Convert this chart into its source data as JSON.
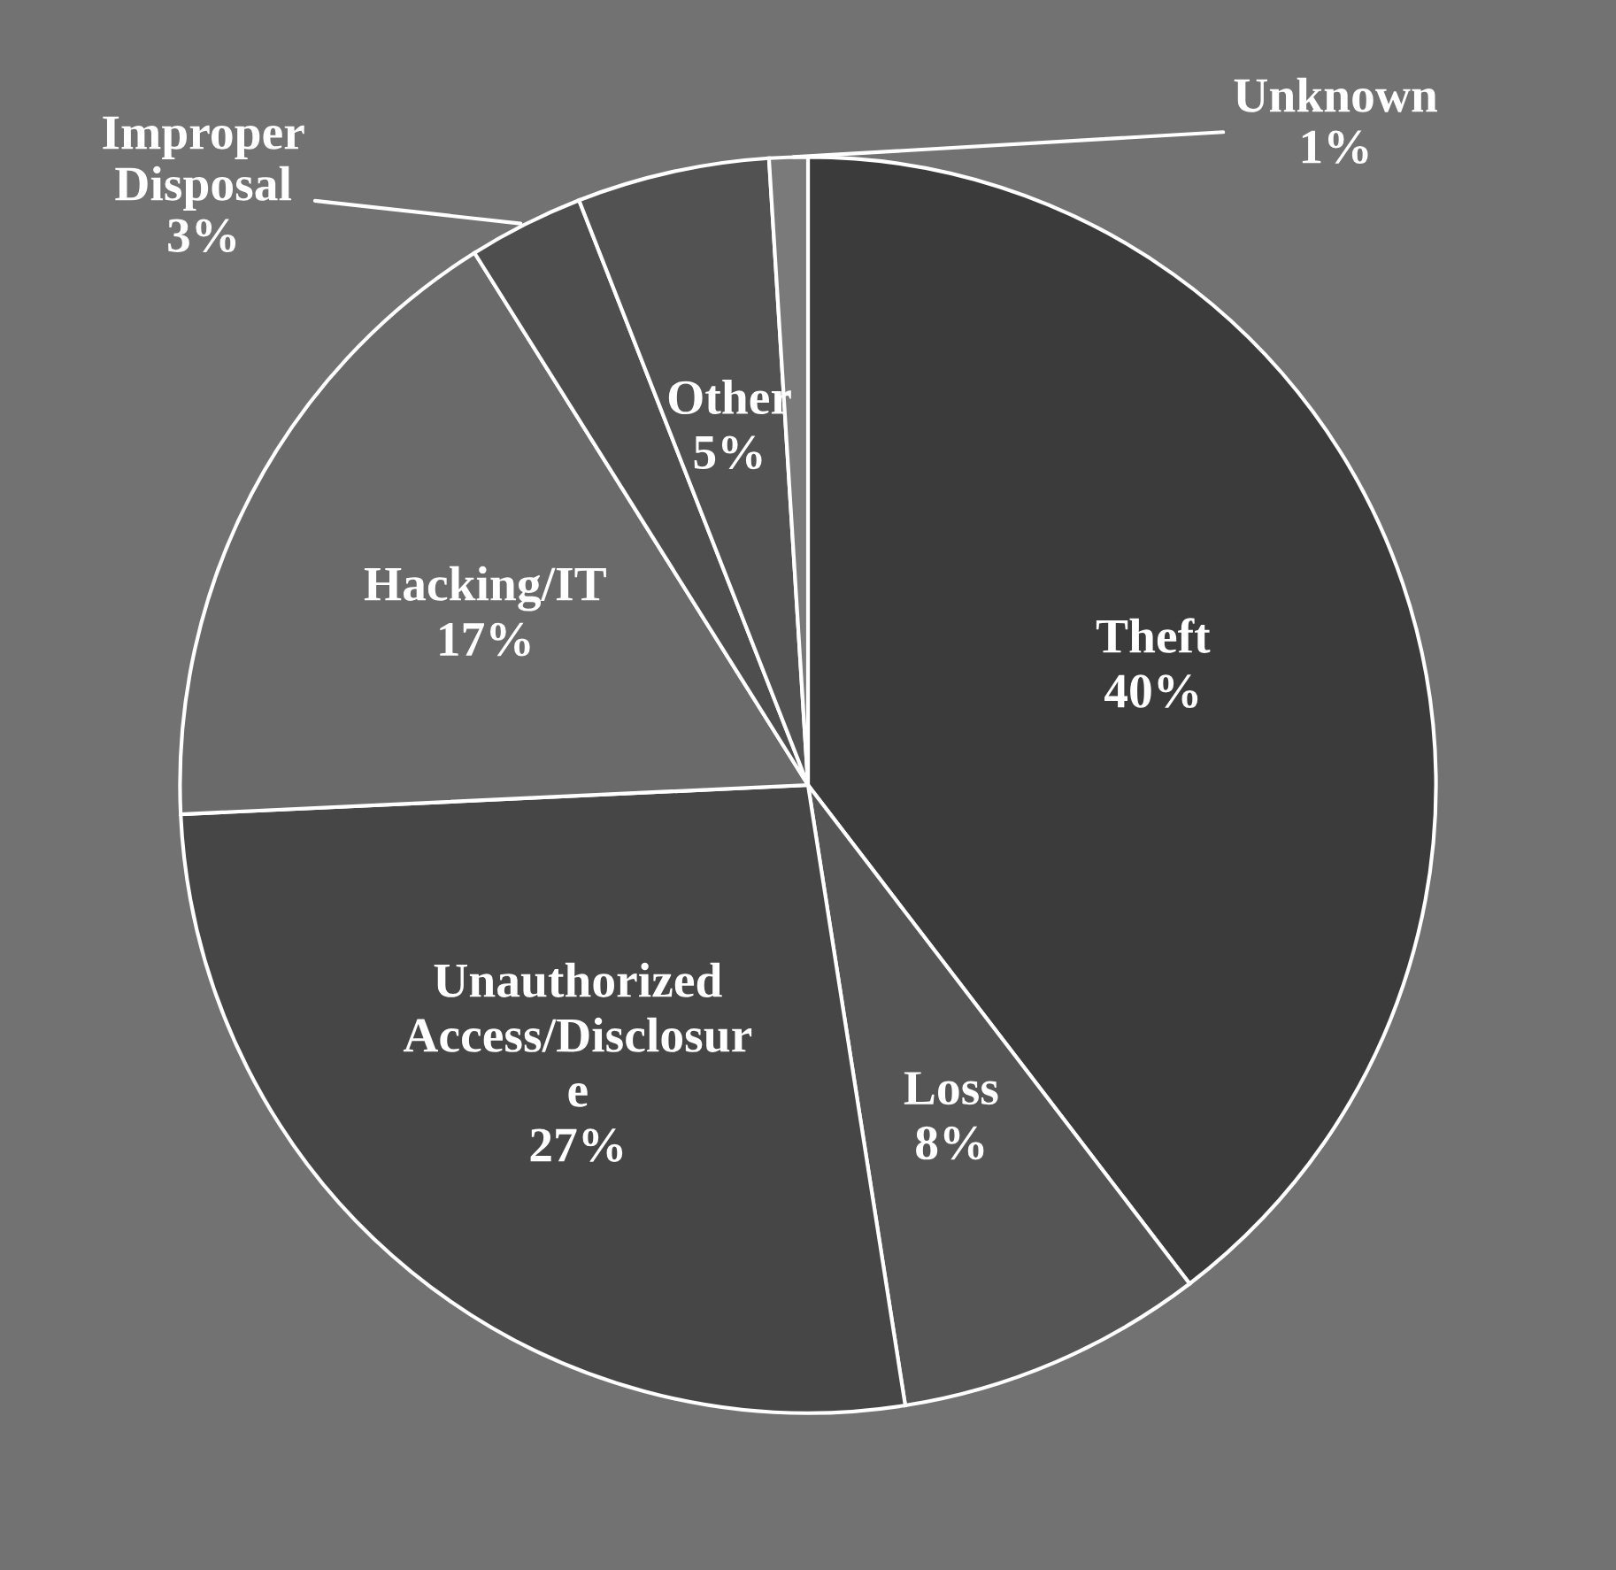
{
  "chart_data": {
    "type": "pie",
    "categories": [
      "Theft",
      "Loss",
      "Unauthorized\nAccess/Disclosur\ne",
      "Hacking/IT",
      "Improper\nDisposal",
      "Other",
      "Unknown"
    ],
    "values": [
      40,
      8,
      27,
      17,
      3,
      5,
      1
    ],
    "value_labels": [
      "40%",
      "8%",
      "27%",
      "17%",
      "3%",
      "5%",
      "1%"
    ],
    "colors": [
      "#3b3b3b",
      "#555555",
      "#464646",
      "#6a6a6a",
      "#4e4e4e",
      "#525252",
      "#7a7a7a"
    ],
    "legend": false
  }
}
